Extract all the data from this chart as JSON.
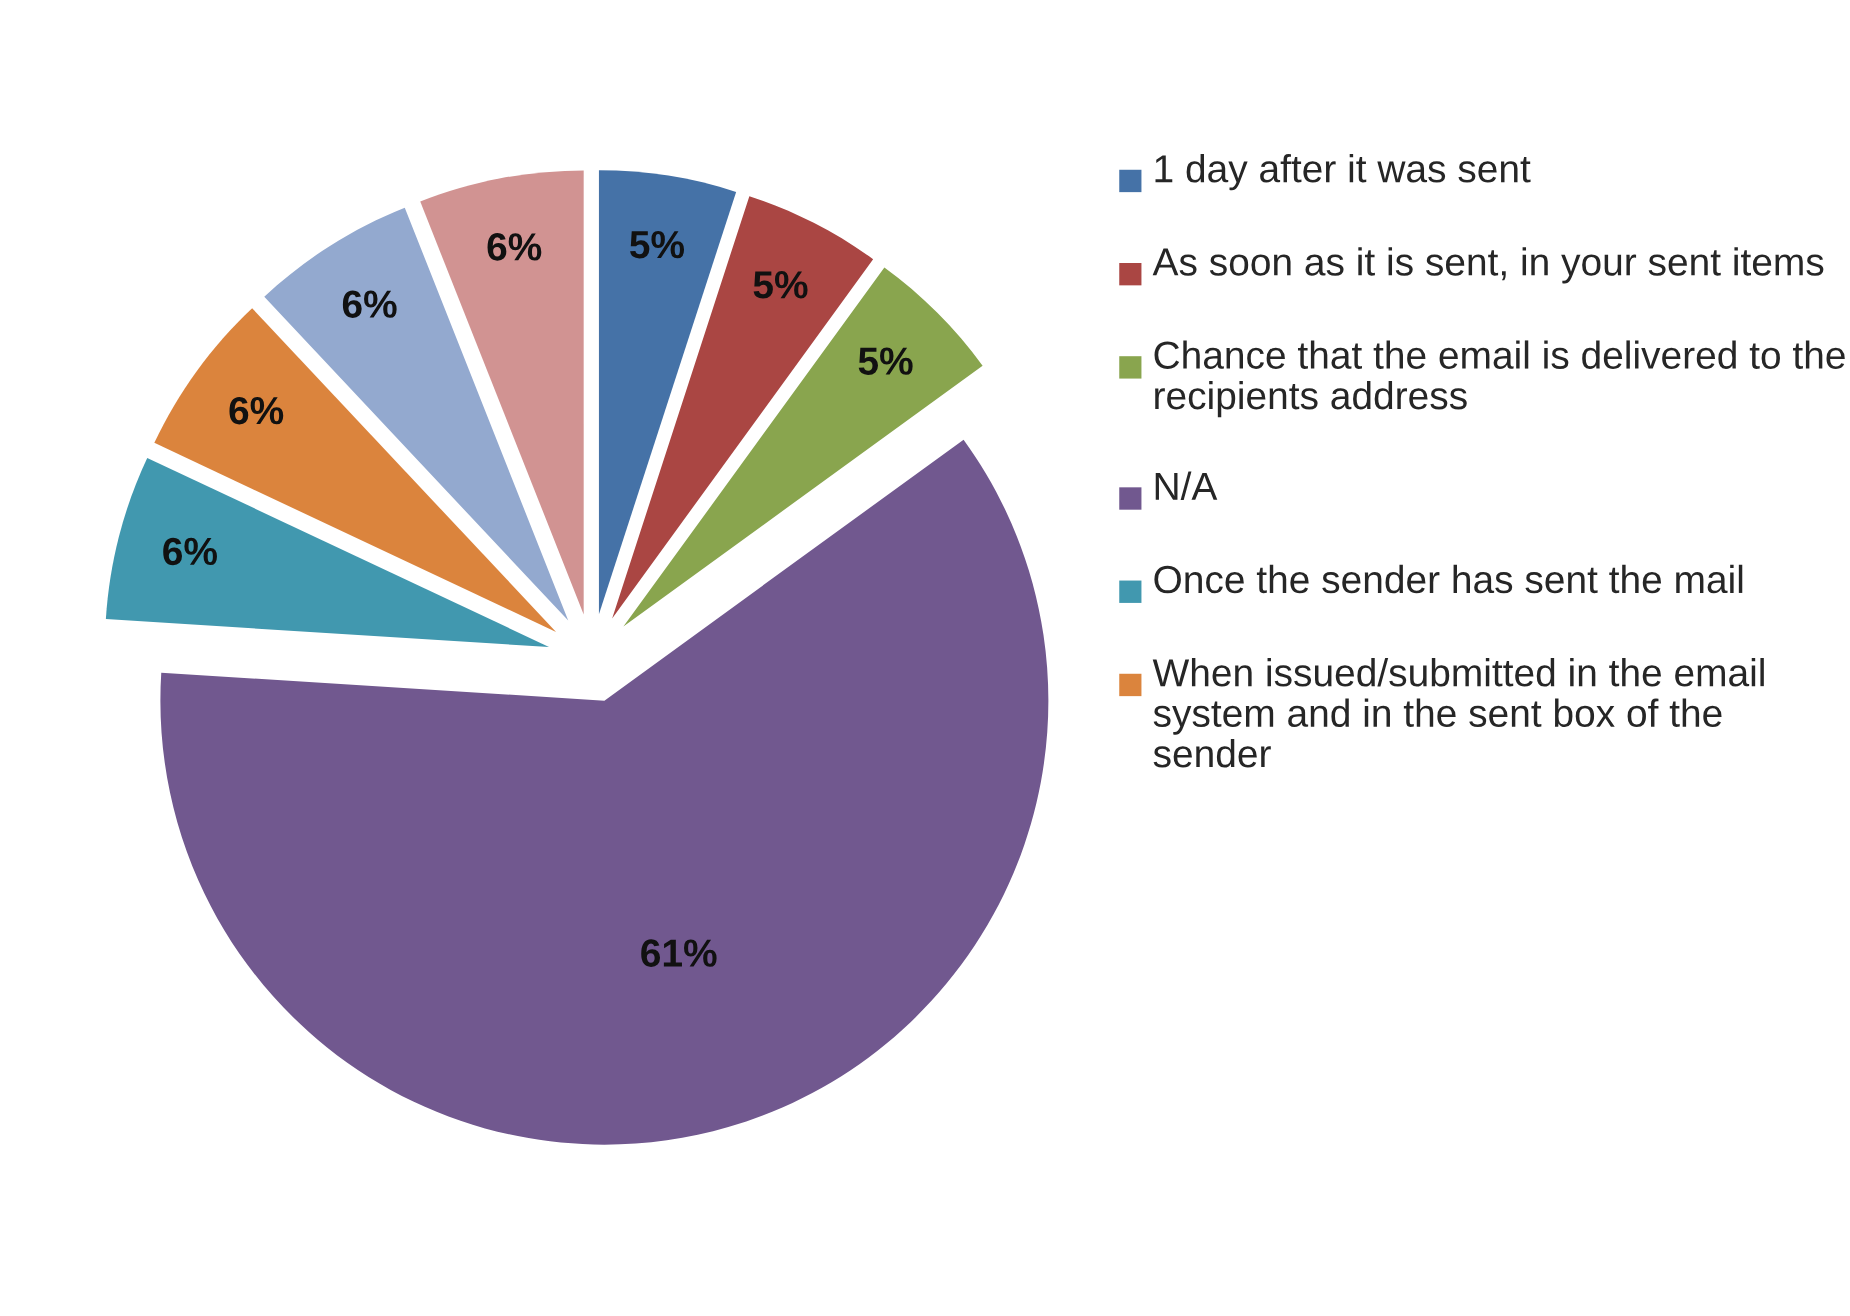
{
  "chart_data": {
    "type": "pie",
    "categories": [
      "1 day after it was sent",
      "As soon as it is sent, in your sent items",
      "Chance that the email is delivered to the recipients address",
      "N/A",
      "Once the sender has sent the mail",
      "When issued/submitted in the email system and in the sent box of the sender",
      null,
      null
    ],
    "values": [
      5,
      5,
      5,
      61,
      6,
      6,
      6,
      6
    ],
    "colors": [
      "#4572a7",
      "#aa4643",
      "#89a54e",
      "#71588f",
      "#4198af",
      "#db843d",
      "#93a9cf",
      "#d19392"
    ],
    "value_labels": [
      "5%",
      "5%",
      "5%",
      "61%",
      "6%",
      "6%",
      "6%",
      "6%"
    ],
    "legend": "right"
  }
}
